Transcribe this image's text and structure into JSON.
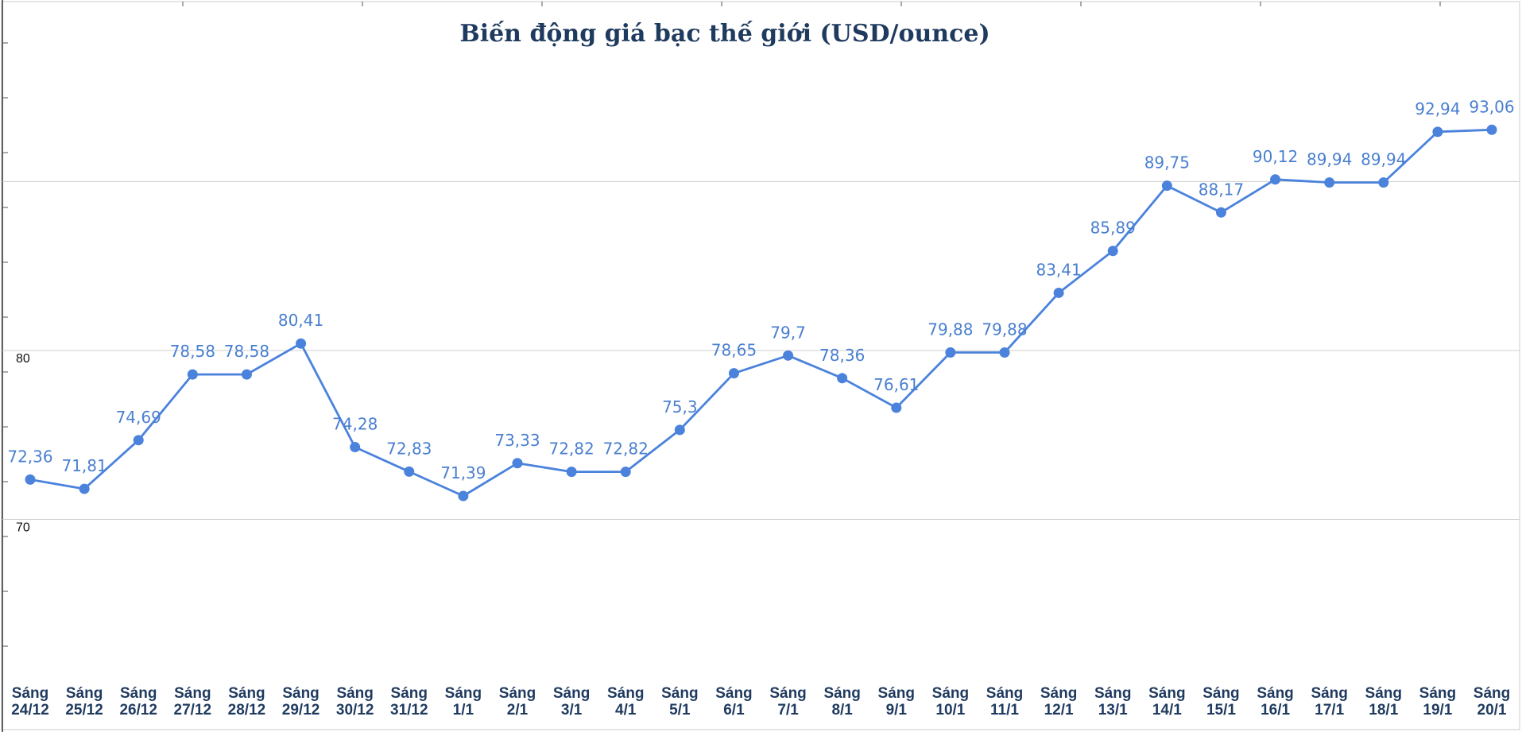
{
  "chart_data": {
    "type": "line",
    "title": "Biến động giá bạc thế giới (USD/ounce)",
    "xlabel": "",
    "ylabel": "",
    "ylim": [
      62.5,
      99.8
    ],
    "yticks": [
      {
        "value": 80,
        "label": "80"
      },
      {
        "value": 70,
        "label": "70"
      }
    ],
    "grid": true,
    "line_color": "#4a82dc",
    "label_color": "#4a7fd0",
    "categories": [
      [
        "Sáng",
        "24/12"
      ],
      [
        "Sáng",
        "25/12"
      ],
      [
        "Sáng",
        "26/12"
      ],
      [
        "Sáng",
        "27/12"
      ],
      [
        "Sáng",
        "28/12"
      ],
      [
        "Sáng",
        "29/12"
      ],
      [
        "Sáng",
        "30/12"
      ],
      [
        "Sáng",
        "31/12"
      ],
      [
        "Sáng",
        "1/1"
      ],
      [
        "Sáng",
        "2/1"
      ],
      [
        "Sáng",
        "3/1"
      ],
      [
        "Sáng",
        "4/1"
      ],
      [
        "Sáng",
        "5/1"
      ],
      [
        "Sáng",
        "6/1"
      ],
      [
        "Sáng",
        "7/1"
      ],
      [
        "Sáng",
        "8/1"
      ],
      [
        "Sáng",
        "9/1"
      ],
      [
        "Sáng",
        "10/1"
      ],
      [
        "Sáng",
        "11/1"
      ],
      [
        "Sáng",
        "12/1"
      ],
      [
        "Sáng",
        "13/1"
      ],
      [
        "Sáng",
        "14/1"
      ],
      [
        "Sáng",
        "15/1"
      ],
      [
        "Sáng",
        "16/1"
      ],
      [
        "Sáng",
        "17/1"
      ],
      [
        "Sáng",
        "18/1"
      ],
      [
        "Sáng",
        "19/1"
      ],
      [
        "Sáng",
        "20/1"
      ]
    ],
    "values": [
      72.36,
      71.81,
      74.69,
      78.58,
      78.58,
      80.41,
      74.28,
      72.83,
      71.39,
      73.33,
      72.82,
      72.82,
      75.3,
      78.65,
      79.7,
      78.36,
      76.61,
      79.88,
      79.88,
      83.41,
      85.89,
      89.75,
      88.17,
      90.12,
      89.94,
      89.94,
      92.94,
      93.06
    ],
    "value_labels": [
      "72,36",
      "71,81",
      "74,69",
      "78,58",
      "78,58",
      "80,41",
      "74,28",
      "72,83",
      "71,39",
      "73,33",
      "72,82",
      "72,82",
      "75,3",
      "78,65",
      "79,7",
      "78,36",
      "76,61",
      "79,88",
      "79,88",
      "83,41",
      "85,89",
      "89,75",
      "88,17",
      "90,12",
      "89,94",
      "89,94",
      "92,94",
      "93,06"
    ]
  }
}
